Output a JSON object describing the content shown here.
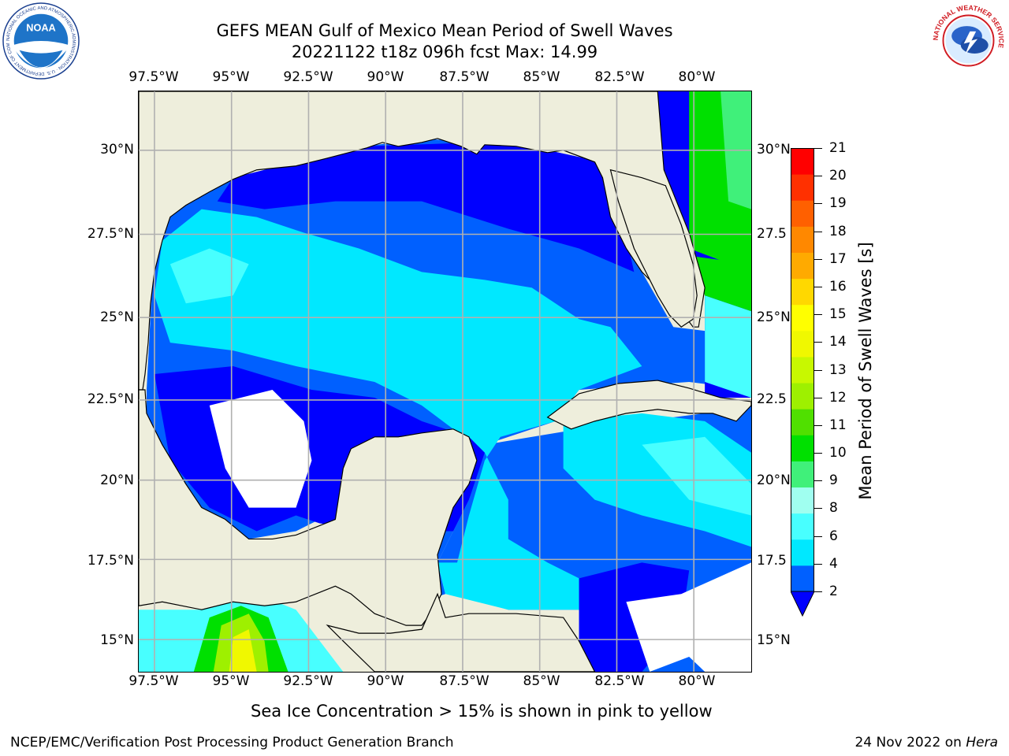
{
  "title_line1": "GEFS MEAN Gulf of Mexico Mean Period of Swell Waves",
  "title_line2": "20221122 t18z 096h fcst   Max: 14.99",
  "lon_labels": [
    "97.5°W",
    "95°W",
    "92.5°W",
    "90°W",
    "87.5°W",
    "85°W",
    "82.5°W",
    "80°W"
  ],
  "lat_labels": [
    "30°N",
    "27.5°N",
    "25°N",
    "22.5°N",
    "20°N",
    "17.5°N",
    "15°N"
  ],
  "lat_labels_right": [
    "30°N",
    "27.5",
    "25°N",
    "22.5",
    "20°N",
    "17.5",
    "15°N"
  ],
  "colorbar": {
    "label": "Mean Period of Swell Waves [s]",
    "ticks": [
      "21",
      "20",
      "19",
      "18",
      "17",
      "16",
      "15",
      "14",
      "13",
      "12",
      "11",
      "10",
      "9",
      "8",
      "6",
      "4",
      "2"
    ],
    "colors": [
      "#0060ff",
      "#00e8ff",
      "#48ffff",
      "#a0fff0",
      "#40f07a",
      "#00e000",
      "#50e000",
      "#9ef000",
      "#c8f800",
      "#f0f800",
      "#ffff00",
      "#ffd800",
      "#ffaa00",
      "#ff8800",
      "#ff6000",
      "#ff3000",
      "#ff0000"
    ],
    "extend_color": "#0000ff"
  },
  "footer_note": "Sea Ice Concentration > 15% is shown in pink to yellow",
  "footer_left": "NCEP/EMC/Verification Post Processing Product Generation Branch",
  "footer_right_date": "24 Nov 2022 on ",
  "footer_right_host": "Hera",
  "logos": {
    "noaa_text": "NOAA",
    "noaa_ring": "NATIONAL OCEANIC AND ATMOSPHERIC ADMINISTRATION · U.S. DEPARTMENT OF COMMERCE",
    "nws_ring": "NATIONAL WEATHER SERVICE"
  },
  "map_colors": {
    "land": "#eeeedc",
    "grid": "#b0b0b0",
    "coast": "#000000",
    "no_data": "#ffffff"
  }
}
